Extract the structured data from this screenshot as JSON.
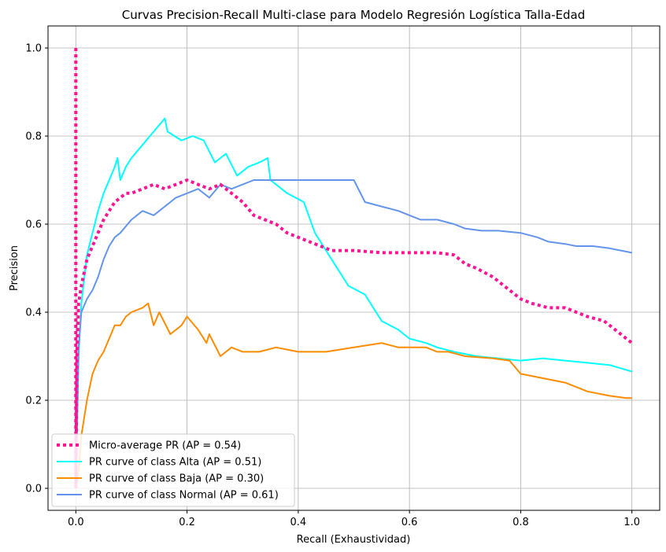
{
  "chart_data": {
    "type": "line",
    "title": "Curvas Precision-Recall Multi-clase para Modelo Regresión Logística Talla-Edad",
    "xlabel": "Recall (Exhaustividad)",
    "ylabel": "Precision",
    "xlim": [
      -0.05,
      1.05
    ],
    "ylim": [
      -0.05,
      1.05
    ],
    "xticks": [
      0.0,
      0.2,
      0.4,
      0.6,
      0.8,
      1.0
    ],
    "xtick_labels": [
      "0.0",
      "0.2",
      "0.4",
      "0.6",
      "0.8",
      "1.0"
    ],
    "yticks": [
      0.0,
      0.2,
      0.4,
      0.6,
      0.8,
      1.0
    ],
    "ytick_labels": [
      "0.0",
      "0.2",
      "0.4",
      "0.6",
      "0.8",
      "1.0"
    ],
    "grid": true,
    "legend_position": "lower-left",
    "series": [
      {
        "name": "Micro-average PR (AP = 0.54)",
        "color": "#ff1493",
        "style": "dotted",
        "x": [
          0.0,
          0.0,
          0.002,
          0.005,
          0.01,
          0.015,
          0.02,
          0.03,
          0.04,
          0.05,
          0.06,
          0.07,
          0.08,
          0.09,
          0.1,
          0.12,
          0.14,
          0.16,
          0.18,
          0.2,
          0.22,
          0.24,
          0.26,
          0.28,
          0.3,
          0.32,
          0.34,
          0.36,
          0.38,
          0.4,
          0.42,
          0.44,
          0.46,
          0.5,
          0.55,
          0.6,
          0.65,
          0.68,
          0.7,
          0.72,
          0.75,
          0.78,
          0.8,
          0.82,
          0.85,
          0.88,
          0.9,
          0.92,
          0.95,
          0.97,
          1.0
        ],
        "y": [
          1.0,
          0.0,
          0.3,
          0.42,
          0.46,
          0.49,
          0.52,
          0.55,
          0.58,
          0.61,
          0.63,
          0.65,
          0.66,
          0.67,
          0.67,
          0.68,
          0.69,
          0.68,
          0.69,
          0.7,
          0.69,
          0.68,
          0.69,
          0.67,
          0.65,
          0.62,
          0.61,
          0.6,
          0.58,
          0.57,
          0.56,
          0.55,
          0.54,
          0.54,
          0.535,
          0.535,
          0.535,
          0.53,
          0.51,
          0.5,
          0.48,
          0.45,
          0.43,
          0.42,
          0.41,
          0.41,
          0.4,
          0.39,
          0.38,
          0.36,
          0.33
        ]
      },
      {
        "name": "PR curve of class Alta (AP = 0.51)",
        "color": "#00ffff",
        "style": "solid",
        "x": [
          0.0,
          0.0,
          0.005,
          0.01,
          0.02,
          0.03,
          0.04,
          0.05,
          0.06,
          0.07,
          0.075,
          0.08,
          0.09,
          0.1,
          0.12,
          0.14,
          0.16,
          0.165,
          0.19,
          0.21,
          0.23,
          0.25,
          0.27,
          0.29,
          0.31,
          0.33,
          0.345,
          0.35,
          0.38,
          0.41,
          0.43,
          0.46,
          0.49,
          0.52,
          0.55,
          0.58,
          0.6,
          0.63,
          0.65,
          0.68,
          0.72,
          0.76,
          0.8,
          0.84,
          0.88,
          0.92,
          0.96,
          1.0
        ],
        "y": [
          0.0,
          0.0,
          0.3,
          0.42,
          0.53,
          0.58,
          0.63,
          0.67,
          0.7,
          0.73,
          0.75,
          0.7,
          0.73,
          0.75,
          0.78,
          0.81,
          0.84,
          0.81,
          0.79,
          0.8,
          0.79,
          0.74,
          0.76,
          0.71,
          0.73,
          0.74,
          0.75,
          0.7,
          0.67,
          0.65,
          0.58,
          0.52,
          0.46,
          0.44,
          0.38,
          0.36,
          0.34,
          0.33,
          0.32,
          0.31,
          0.3,
          0.295,
          0.29,
          0.295,
          0.29,
          0.285,
          0.28,
          0.265
        ]
      },
      {
        "name": "PR curve of class Baja (AP = 0.30)",
        "color": "#ff8c00",
        "style": "solid",
        "x": [
          0.0,
          0.0,
          0.005,
          0.01,
          0.02,
          0.03,
          0.04,
          0.05,
          0.06,
          0.07,
          0.08,
          0.09,
          0.1,
          0.12,
          0.13,
          0.14,
          0.15,
          0.17,
          0.19,
          0.2,
          0.22,
          0.235,
          0.24,
          0.26,
          0.28,
          0.3,
          0.33,
          0.36,
          0.4,
          0.45,
          0.5,
          0.55,
          0.58,
          0.6,
          0.63,
          0.65,
          0.67,
          0.7,
          0.75,
          0.78,
          0.8,
          0.84,
          0.88,
          0.92,
          0.96,
          0.99,
          1.0
        ],
        "y": [
          0.0,
          0.0,
          0.04,
          0.12,
          0.2,
          0.26,
          0.29,
          0.31,
          0.34,
          0.37,
          0.37,
          0.39,
          0.4,
          0.41,
          0.42,
          0.37,
          0.4,
          0.35,
          0.37,
          0.39,
          0.36,
          0.33,
          0.35,
          0.3,
          0.32,
          0.31,
          0.31,
          0.32,
          0.31,
          0.31,
          0.32,
          0.33,
          0.32,
          0.32,
          0.32,
          0.31,
          0.31,
          0.3,
          0.295,
          0.29,
          0.26,
          0.25,
          0.24,
          0.22,
          0.21,
          0.205,
          0.205
        ]
      },
      {
        "name": "PR curve of class Normal (AP = 0.61)",
        "color": "#6495ed",
        "style": "solid",
        "x": [
          0.0,
          0.0,
          0.005,
          0.01,
          0.02,
          0.03,
          0.04,
          0.05,
          0.06,
          0.07,
          0.08,
          0.1,
          0.12,
          0.14,
          0.16,
          0.18,
          0.2,
          0.22,
          0.24,
          0.26,
          0.28,
          0.3,
          0.32,
          0.34,
          0.36,
          0.38,
          0.4,
          0.42,
          0.44,
          0.46,
          0.48,
          0.5,
          0.52,
          0.55,
          0.58,
          0.6,
          0.62,
          0.65,
          0.68,
          0.7,
          0.73,
          0.76,
          0.8,
          0.83,
          0.85,
          0.88,
          0.9,
          0.93,
          0.96,
          0.98,
          1.0
        ],
        "y": [
          0.0,
          0.0,
          0.32,
          0.4,
          0.43,
          0.45,
          0.48,
          0.52,
          0.55,
          0.57,
          0.58,
          0.61,
          0.63,
          0.62,
          0.64,
          0.66,
          0.67,
          0.68,
          0.66,
          0.69,
          0.68,
          0.69,
          0.7,
          0.7,
          0.7,
          0.7,
          0.7,
          0.7,
          0.7,
          0.7,
          0.7,
          0.7,
          0.65,
          0.64,
          0.63,
          0.62,
          0.61,
          0.61,
          0.6,
          0.59,
          0.585,
          0.585,
          0.58,
          0.57,
          0.56,
          0.555,
          0.55,
          0.55,
          0.545,
          0.54,
          0.535
        ]
      }
    ]
  }
}
